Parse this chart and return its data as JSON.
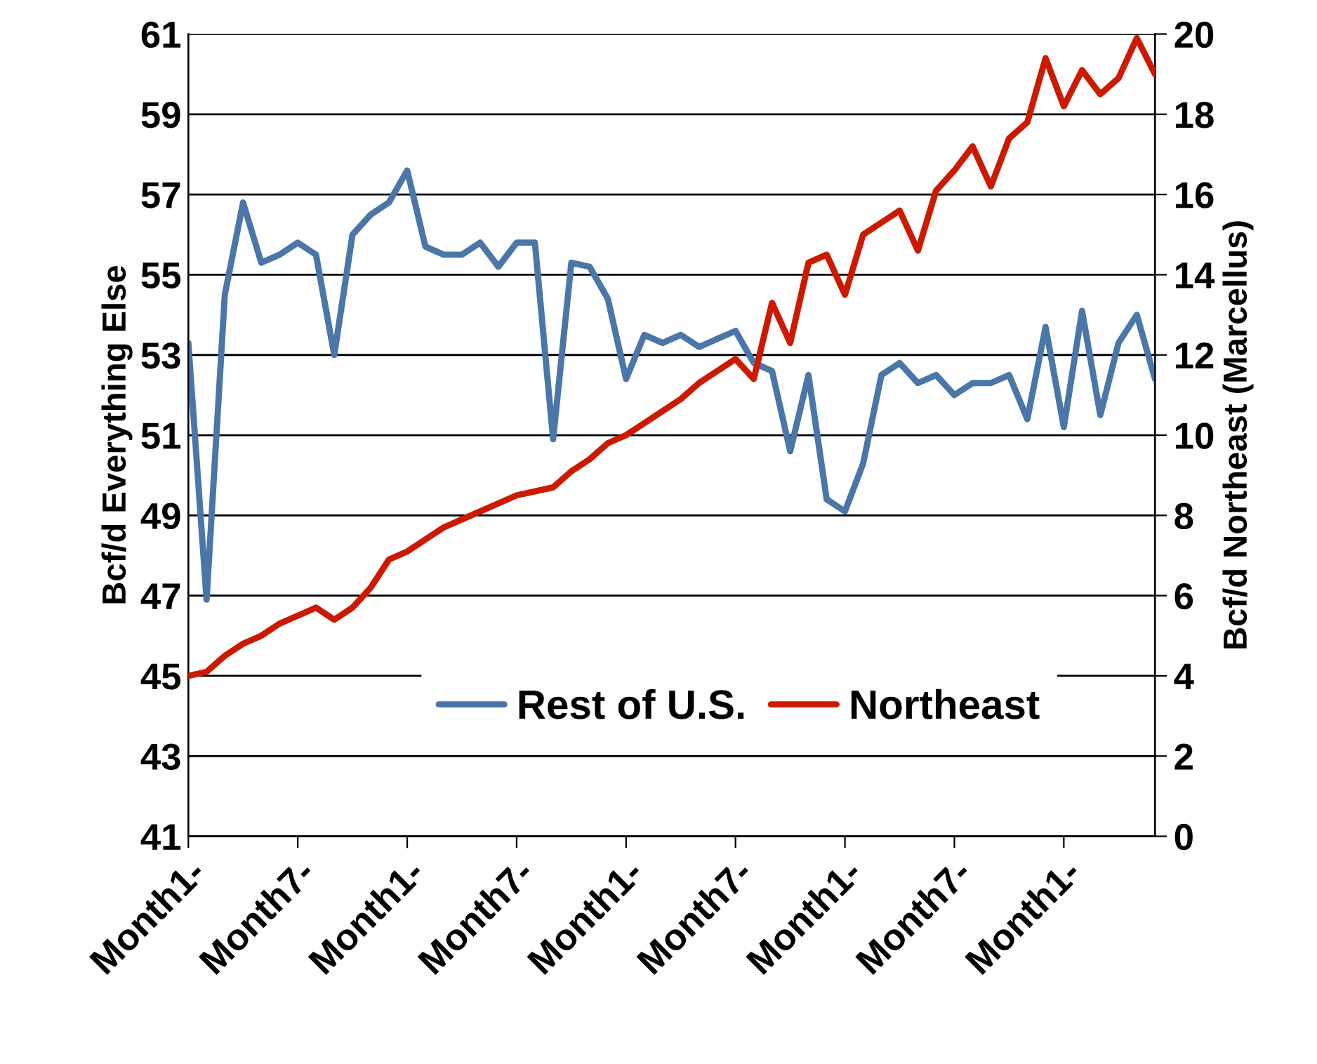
{
  "chart_data": {
    "type": "line",
    "categories": [
      "Month1-",
      null,
      null,
      null,
      null,
      null,
      "Month7-",
      null,
      null,
      null,
      null,
      null,
      "Month1-",
      null,
      null,
      null,
      null,
      null,
      "Month7-",
      null,
      null,
      null,
      null,
      null,
      "Month1-",
      null,
      null,
      null,
      null,
      null,
      "Month7-",
      null,
      null,
      null,
      null,
      null,
      "Month1-",
      null,
      null,
      null,
      null,
      null,
      "Month7-",
      null,
      null,
      null,
      null,
      null,
      "Month1-",
      null,
      null,
      null,
      null,
      null
    ],
    "ylabel": "Bcf/d Everything Else",
    "y2label": "Bcf/d Northeast (Marcellus)",
    "ylim": [
      41,
      61
    ],
    "yticks": [
      41,
      43,
      45,
      47,
      49,
      51,
      53,
      55,
      57,
      59,
      61
    ],
    "y2lim": [
      0,
      20
    ],
    "y2ticks": [
      0,
      2,
      4,
      6,
      8,
      10,
      12,
      14,
      16,
      18,
      20
    ],
    "grid": "y",
    "legend": "bottom",
    "line_style": "solid",
    "marker": "none",
    "series": [
      {
        "name": "Rest of U.S.",
        "color": "#4a76a8",
        "values": [
          53.3,
          46.9,
          54.5,
          56.8,
          55.3,
          55.5,
          55.8,
          55.5,
          53.0,
          56,
          56.5,
          56.8,
          57.6,
          55.7,
          55.5,
          55.5,
          55.8,
          55.2,
          55.8,
          55.8,
          50.9,
          55.3,
          55.2,
          54.4,
          52.4,
          53.5,
          53.3,
          53.5,
          53.2,
          53.4,
          53.6,
          52.8,
          52.6,
          50.6,
          52.5,
          49.4,
          49.1,
          50.3,
          52.5,
          52.8,
          52.3,
          52.5,
          52.0,
          52.3,
          52.3,
          52.5,
          51.4,
          53.7,
          51.2,
          54.1,
          51.5,
          53.3,
          54,
          52.4
        ]
      },
      {
        "name": "Northeast",
        "color": "#cc1a00",
        "axis": "y2",
        "values": [
          4.0,
          4.1,
          4.5,
          4.8,
          5.0,
          5.3,
          5.5,
          5.7,
          5.4,
          5.7,
          6.2,
          6.9,
          7.1,
          7.4,
          7.7,
          7.9,
          8.1,
          8.3,
          8.5,
          8.6,
          8.7,
          9.1,
          9.4,
          9.8,
          10.0,
          10.3,
          10.6,
          10.9,
          11.3,
          11.6,
          11.9,
          11.4,
          13.3,
          12.3,
          14.3,
          14.5,
          13.5,
          15.0,
          15.3,
          15.6,
          14.6,
          16.1,
          16.6,
          17.2,
          16.2,
          17.4,
          17.8,
          19.4,
          18.2,
          19.1,
          18.5,
          18.9,
          19.9,
          19.0
        ]
      }
    ]
  }
}
